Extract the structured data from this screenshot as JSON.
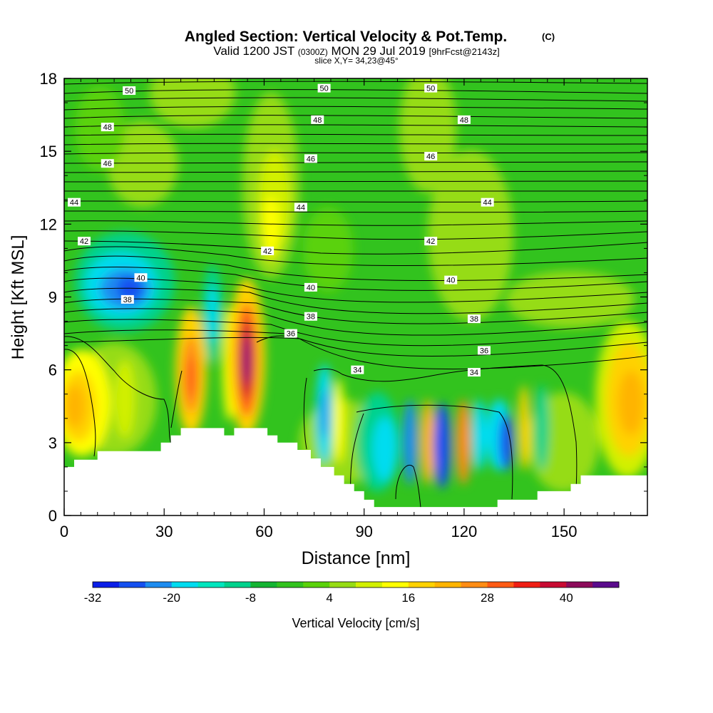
{
  "title": {
    "main": "Angled Section: Vertical Velocity & Pot.Temp.",
    "main_units": "(C)",
    "valid_prefix": "Valid 1200 JST",
    "valid_utc": "(0300Z)",
    "valid_date": "MON 29 Jul 2019",
    "forecast": "[9hrFcst@2143z]",
    "slice": "slice X,Y= 34,23@45°"
  },
  "chart_data": {
    "type": "heatmap",
    "xlabel": "Distance [nm]",
    "ylabel": "Height [Kft MSL]",
    "xlim": [
      0,
      175
    ],
    "ylim": [
      0,
      18
    ],
    "x_ticks": [
      "0",
      "30",
      "60",
      "90",
      "120",
      "150"
    ],
    "x_tick_values": [
      0,
      30,
      60,
      90,
      120,
      150
    ],
    "y_ticks": [
      "0",
      "3",
      "6",
      "9",
      "12",
      "15",
      "18"
    ],
    "y_tick_values": [
      0,
      3,
      6,
      9,
      12,
      15,
      18
    ],
    "colorbar": {
      "label": "Vertical Velocity [cm/s]",
      "tick_labels": [
        "-32",
        "-20",
        "-8",
        "4",
        "16",
        "28",
        "40"
      ],
      "tick_values": [
        -32,
        -20,
        -8,
        4,
        16,
        28,
        40
      ],
      "colors": [
        "#0a1ee8",
        "#1550f0",
        "#1d8cf0",
        "#00dcf0",
        "#00e6be",
        "#00d28c",
        "#14b432",
        "#32c31e",
        "#5ad20a",
        "#96dc14",
        "#d2f000",
        "#ffff00",
        "#ffd200",
        "#ffb400",
        "#ff8c14",
        "#ff5a14",
        "#f01e14",
        "#c80a32",
        "#8c0a5a",
        "#5a0a8c"
      ]
    },
    "contour_labels": [
      {
        "text": "50",
        "x": 19.5,
        "y": 17.5
      },
      {
        "text": "50",
        "x": 78,
        "y": 17.6
      },
      {
        "text": "50",
        "x": 110,
        "y": 17.6
      },
      {
        "text": "48",
        "x": 13,
        "y": 16.0
      },
      {
        "text": "48",
        "x": 76,
        "y": 16.3
      },
      {
        "text": "48",
        "x": 120,
        "y": 16.3
      },
      {
        "text": "46",
        "x": 13,
        "y": 14.5
      },
      {
        "text": "46",
        "x": 74,
        "y": 14.7
      },
      {
        "text": "46",
        "x": 110,
        "y": 14.8
      },
      {
        "text": "44",
        "x": 3,
        "y": 12.9
      },
      {
        "text": "44",
        "x": 71,
        "y": 12.7
      },
      {
        "text": "44",
        "x": 127,
        "y": 12.9
      },
      {
        "text": "42",
        "x": 6,
        "y": 11.3
      },
      {
        "text": "42",
        "x": 61,
        "y": 10.9
      },
      {
        "text": "42",
        "x": 110,
        "y": 11.3
      },
      {
        "text": "40",
        "x": 23,
        "y": 9.8
      },
      {
        "text": "40",
        "x": 74,
        "y": 9.4
      },
      {
        "text": "40",
        "x": 116,
        "y": 9.7
      },
      {
        "text": "38",
        "x": 19,
        "y": 8.9
      },
      {
        "text": "38",
        "x": 74,
        "y": 8.2
      },
      {
        "text": "38",
        "x": 123,
        "y": 8.1
      },
      {
        "text": "36",
        "x": 68,
        "y": 7.5
      },
      {
        "text": "36",
        "x": 126,
        "y": 6.8
      },
      {
        "text": "34",
        "x": 88,
        "y": 6.0
      },
      {
        "text": "34",
        "x": 123,
        "y": 5.9
      }
    ],
    "terrain_kft": [
      [
        0,
        2.0
      ],
      [
        3,
        2.0
      ],
      [
        3,
        2.3
      ],
      [
        10,
        2.3
      ],
      [
        10,
        2.65
      ],
      [
        29,
        2.65
      ],
      [
        29,
        3.0
      ],
      [
        32,
        3.0
      ],
      [
        32,
        3.3
      ],
      [
        35,
        3.3
      ],
      [
        35,
        3.6
      ],
      [
        48,
        3.6
      ],
      [
        48,
        3.3
      ],
      [
        51,
        3.3
      ],
      [
        51,
        3.6
      ],
      [
        61,
        3.6
      ],
      [
        61,
        3.3
      ],
      [
        64,
        3.3
      ],
      [
        64,
        3.0
      ],
      [
        70,
        3.0
      ],
      [
        70,
        2.7
      ],
      [
        74,
        2.7
      ],
      [
        74,
        2.35
      ],
      [
        77,
        2.35
      ],
      [
        77,
        2.0
      ],
      [
        81,
        2.0
      ],
      [
        81,
        1.65
      ],
      [
        84,
        1.65
      ],
      [
        84,
        1.3
      ],
      [
        87,
        1.3
      ],
      [
        87,
        1.0
      ],
      [
        90,
        1.0
      ],
      [
        90,
        0.65
      ],
      [
        93,
        0.65
      ],
      [
        93,
        0.35
      ],
      [
        130,
        0.35
      ],
      [
        130,
        0.65
      ],
      [
        142,
        0.65
      ],
      [
        142,
        1.0
      ],
      [
        152,
        1.0
      ],
      [
        152,
        1.3
      ],
      [
        155,
        1.3
      ],
      [
        155,
        1.65
      ],
      [
        175,
        1.65
      ]
    ]
  }
}
